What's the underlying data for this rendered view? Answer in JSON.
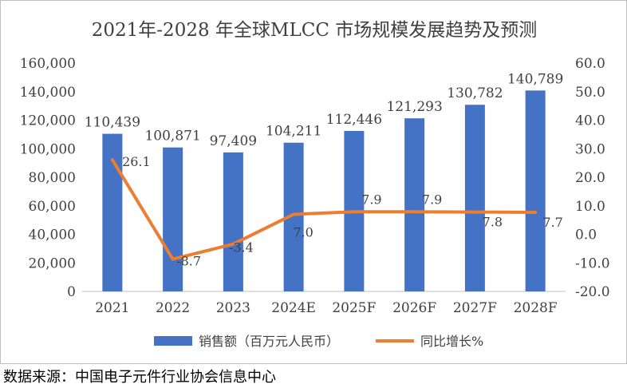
{
  "chart_data": {
    "type": "bar",
    "title": "2021年-2028 年全球MLCC 市场规模发展趋势及预测",
    "categories": [
      "2021",
      "2022",
      "2023",
      "2024E",
      "2025F",
      "2026F",
      "2027F",
      "2028F"
    ],
    "series": [
      {
        "name": "销售额（百万元人民币）",
        "type": "bar",
        "axis": "left",
        "color": "#4472C4",
        "values": [
          110439,
          100871,
          97409,
          104211,
          112446,
          121293,
          130782,
          140789
        ],
        "labels": [
          "110,439",
          "100,871",
          "97,409",
          "104,211",
          "112,446",
          "121,293",
          "130,782",
          "140,789"
        ]
      },
      {
        "name": "同比增长%",
        "type": "line",
        "axis": "right",
        "color": "#ED7D31",
        "values": [
          26.1,
          -8.7,
          -3.4,
          7.0,
          7.9,
          7.9,
          7.8,
          7.7
        ],
        "labels": [
          "26.1",
          "-8.7",
          "-3.4",
          "7.0",
          "7.9",
          "7.9",
          "7.8",
          "7.7"
        ]
      }
    ],
    "y_left": {
      "lim": [
        0,
        160000
      ],
      "ticks": [
        "0",
        "20,000",
        "40,000",
        "60,000",
        "80,000",
        "100,000",
        "120,000",
        "140,000",
        "160,000"
      ]
    },
    "y_right": {
      "lim": [
        -20,
        60
      ],
      "ticks": [
        "-20.0",
        "-10.0",
        "0.0",
        "10.0",
        "20.0",
        "30.0",
        "40.0",
        "50.0",
        "60.0"
      ]
    },
    "grid": false,
    "legend": "bottom"
  },
  "source_note": "数据来源：中国电子元件行业协会信息中心"
}
